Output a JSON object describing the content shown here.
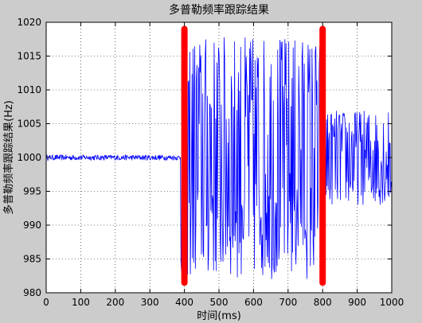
{
  "figure": {
    "background": "#cccccc"
  },
  "chart_data": {
    "type": "line",
    "title": "多普勒频率跟踪结果",
    "xlabel": "时间(ms)",
    "ylabel": "多普勒频率跟踪结果(Hz)",
    "xlim": [
      0,
      1000
    ],
    "ylim": [
      980,
      1020
    ],
    "xticks": [
      "0",
      "100",
      "200",
      "300",
      "400",
      "500",
      "600",
      "700",
      "800",
      "900",
      "1000"
    ],
    "yticks": [
      "980",
      "985",
      "990",
      "995",
      "1000",
      "1005",
      "1010",
      "1015",
      "1020"
    ],
    "grid": true,
    "grid_style": "dotted",
    "series": [
      {
        "color": "#0000ff",
        "segments": [
          {
            "x_start": 0,
            "x_end": 390,
            "center": 1000,
            "amplitude": 0.4
          },
          {
            "x_start": 390,
            "x_end": 800,
            "center": 1000,
            "amplitude": 18
          },
          {
            "x_start": 800,
            "x_end": 1000,
            "center": 1000,
            "amplitude": 7
          }
        ]
      }
    ],
    "markers": [
      {
        "x": 400,
        "y_from": 981.5,
        "y_to": 1019,
        "color": "#ff0000"
      },
      {
        "x": 800,
        "y_from": 981.5,
        "y_to": 1019,
        "color": "#ff0000"
      }
    ]
  }
}
